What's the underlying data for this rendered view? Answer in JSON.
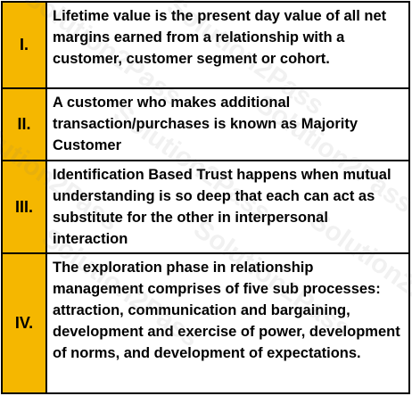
{
  "statements": [
    {
      "numeral": "I.",
      "text": "Lifetime value is the present day value of all net margins earned from a relationship with a customer, customer segment or cohort."
    },
    {
      "numeral": "II.",
      "text": "A customer who makes additional transaction/purchases is known as Majority Customer"
    },
    {
      "numeral": "III.",
      "text": "Identification Based Trust happens when mutual understanding is so deep that each can act as substitute for the other in interpersonal interaction"
    },
    {
      "numeral": "IV.",
      "text": "The exploration phase in relationship management comprises of five sub processes: attraction, communication and bargaining, development and exercise of power, development of norms, and development of expectations."
    }
  ],
  "colors": {
    "numeral_background": "#f5b700",
    "border": "#000000"
  }
}
